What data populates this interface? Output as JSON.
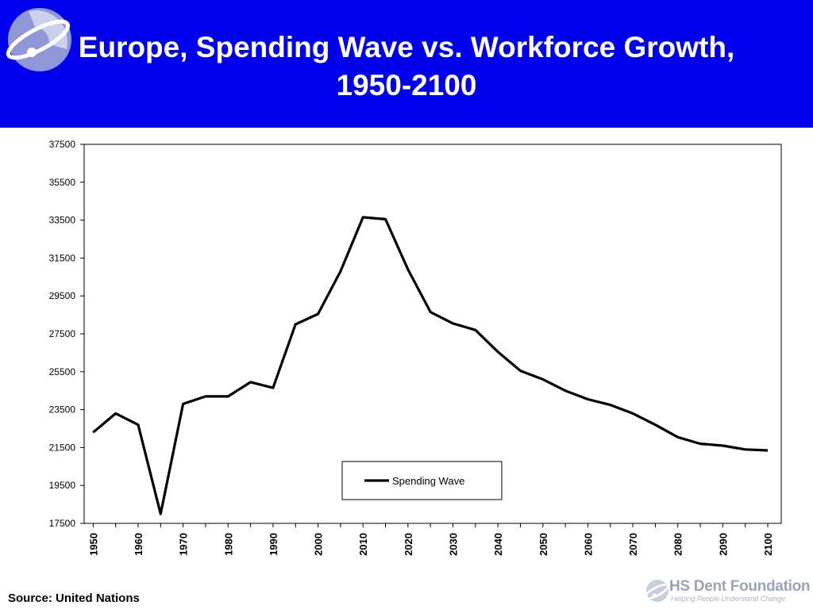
{
  "header": {
    "title_line1": "Europe, Spending Wave vs. Workforce Growth,",
    "title_line2": "1950-2100",
    "bg_color": "#0000ee"
  },
  "source": "Source: United Nations",
  "footer": {
    "brand": "HS Dent Foundation",
    "tagline": "Helping People Understand Change"
  },
  "chart_data": {
    "type": "line",
    "title": "Europe, Spending Wave vs. Workforce Growth, 1950-2100",
    "xlabel": "",
    "ylabel": "",
    "ylim": [
      17500,
      37500
    ],
    "yticks": [
      17500,
      19500,
      21500,
      23500,
      25500,
      27500,
      29500,
      31500,
      33500,
      35500,
      37500
    ],
    "xticks": [
      1950,
      1960,
      1970,
      1980,
      1990,
      2000,
      2010,
      2020,
      2030,
      2040,
      2050,
      2060,
      2070,
      2080,
      2090,
      2100
    ],
    "grid": false,
    "legend": "bottom-center",
    "x": [
      1950,
      1955,
      1960,
      1965,
      1970,
      1975,
      1980,
      1985,
      1990,
      1995,
      2000,
      2005,
      2010,
      2015,
      2020,
      2025,
      2030,
      2035,
      2040,
      2045,
      2050,
      2055,
      2060,
      2065,
      2070,
      2075,
      2080,
      2085,
      2090,
      2095,
      2100
    ],
    "series": [
      {
        "name": "Spending Wave",
        "color": "#000000",
        "values": [
          22300,
          23300,
          22700,
          18000,
          23800,
          24200,
          24200,
          24950,
          24650,
          28000,
          28550,
          30800,
          33650,
          33550,
          30900,
          28650,
          28050,
          27700,
          26550,
          25550,
          25100,
          24500,
          24050,
          23750,
          23300,
          22700,
          22050,
          21700,
          21600,
          21400,
          21350
        ]
      }
    ]
  }
}
